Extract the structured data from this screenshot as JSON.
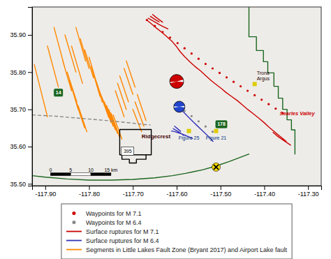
{
  "chart_data": {
    "type": "map",
    "xlim": [
      -117.93,
      -117.27
    ],
    "ylim": [
      35.495,
      35.975
    ],
    "xticks": [
      {
        "value": -117.9,
        "label": "-117.90"
      },
      {
        "value": -117.8,
        "label": "-117.80"
      },
      {
        "value": -117.7,
        "label": "-117.70"
      },
      {
        "value": -117.6,
        "label": "-117.60"
      },
      {
        "value": -117.5,
        "label": "-117.50"
      },
      {
        "value": -117.4,
        "label": "-117.40"
      },
      {
        "value": -117.3,
        "label": "-117.30"
      }
    ],
    "yticks": [
      {
        "value": 35.5,
        "label": "35.50"
      },
      {
        "value": 35.6,
        "label": "35.60"
      },
      {
        "value": 35.7,
        "label": "35.70"
      },
      {
        "value": 35.8,
        "label": "35.80"
      },
      {
        "value": 35.9,
        "label": "35.90"
      }
    ],
    "series": [
      {
        "name": "Waypoints for M 7.1",
        "type": "scatter",
        "color": "#cc0000",
        "marker": "dot",
        "x": [
          -117.668,
          -117.65,
          -117.632,
          -117.615,
          -117.598,
          -117.582,
          -117.566,
          -117.55,
          -117.534,
          -117.518,
          -117.502,
          -117.486,
          -117.47,
          -117.454,
          -117.438,
          -117.422,
          -117.406,
          -117.39,
          -117.374,
          -117.358
        ],
        "values": [
          35.94,
          35.924,
          35.908,
          35.893,
          35.878,
          35.864,
          35.85,
          35.836,
          35.822,
          35.81,
          35.798,
          35.786,
          35.774,
          35.762,
          35.75,
          35.738,
          35.726,
          35.714,
          35.702,
          35.69
        ]
      },
      {
        "name": "Waypoints for M 6.4",
        "type": "scatter",
        "color": "#888888",
        "marker": "dot",
        "x": [
          -117.598,
          -117.582,
          -117.566,
          -117.55,
          -117.534,
          -117.518
        ],
        "values": [
          35.71,
          35.696,
          35.682,
          35.668,
          35.654,
          35.64
        ]
      },
      {
        "name": "Surface ruptures for M 7.1",
        "type": "line",
        "color": "#cc0000",
        "line_style": "solid",
        "x": [
          -117.668,
          -117.658,
          -117.648,
          -117.635,
          -117.622,
          -117.61,
          -117.6,
          -117.592,
          -117.582,
          -117.57,
          -117.558,
          -117.545,
          -117.533,
          -117.522,
          -117.51,
          -117.498,
          -117.488,
          -117.475,
          -117.462,
          -117.45,
          -117.438,
          -117.425,
          -117.412,
          -117.4,
          -117.39,
          -117.38,
          -117.37,
          -117.36,
          -117.35,
          null,
          -117.665,
          -117.658,
          -117.65,
          -117.64,
          -117.63,
          -117.62,
          null,
          -117.66,
          -117.65,
          -117.64,
          null,
          -117.655,
          -117.648,
          -117.64,
          -117.632,
          null,
          -117.38,
          -117.37,
          -117.36,
          -117.35,
          -117.34
        ],
        "values": [
          35.94,
          35.93,
          35.92,
          35.908,
          35.895,
          35.882,
          35.868,
          35.855,
          35.842,
          35.828,
          35.815,
          35.803,
          35.79,
          35.778,
          35.767,
          35.756,
          35.746,
          35.735,
          35.724,
          35.712,
          35.7,
          35.688,
          35.676,
          35.664,
          35.653,
          35.643,
          35.633,
          35.624,
          35.614,
          null,
          35.945,
          35.94,
          35.935,
          35.928,
          35.922,
          35.916,
          null,
          35.95,
          35.942,
          35.935,
          null,
          35.955,
          35.948,
          35.941,
          35.934,
          null,
          35.638,
          35.628,
          35.62,
          35.612,
          35.604
        ]
      },
      {
        "name": "Surface ruptures for M 6.4",
        "type": "line",
        "color": "#3333bb",
        "line_style": "solid",
        "x": [
          -117.598,
          -117.59,
          -117.582,
          -117.572,
          -117.562,
          -117.553,
          -117.545,
          -117.537,
          -117.53,
          -117.523,
          -117.517,
          null,
          -117.612,
          -117.604,
          -117.596,
          -117.588,
          -117.58,
          -117.572,
          -117.564,
          null,
          -117.608,
          -117.6,
          -117.592,
          -117.584,
          null,
          -117.605,
          -117.598,
          -117.591
        ],
        "values": [
          35.71,
          35.7,
          35.69,
          35.678,
          35.666,
          35.656,
          35.647,
          35.638,
          35.63,
          35.622,
          35.614,
          null,
          35.642,
          35.64,
          35.637,
          35.634,
          35.63,
          35.626,
          35.622,
          null,
          35.648,
          35.643,
          35.637,
          35.63,
          null,
          35.655,
          35.648,
          35.641
        ]
      },
      {
        "name": "Segments in Little Lakes Fault Zone (Bryant 2017) and Airport Lake fault",
        "type": "line",
        "color": "#ff8800",
        "line_style": "solid",
        "x": [
          -117.925,
          -117.895,
          null,
          -117.895,
          -117.87,
          null,
          -117.88,
          -117.855,
          null,
          -117.855,
          -117.83,
          null,
          -117.84,
          -117.815,
          null,
          -117.83,
          -117.808,
          null,
          -117.82,
          -117.8,
          null,
          -117.81,
          -117.79,
          null,
          -117.8,
          -117.78,
          null,
          -117.795,
          -117.775,
          null,
          -117.79,
          -117.77,
          null,
          -117.785,
          -117.765,
          null,
          -117.78,
          -117.758,
          null,
          -117.775,
          -117.755,
          null,
          -117.77,
          -117.75,
          null,
          -117.765,
          -117.745,
          null,
          -117.76,
          -117.74,
          null,
          -117.755,
          -117.735,
          null,
          -117.75,
          -117.73,
          null,
          -117.745,
          -117.725,
          null,
          -117.74,
          -117.72,
          null,
          -117.735,
          -117.715,
          null,
          -117.73,
          -117.71,
          null,
          -117.72,
          -117.7,
          null,
          -117.715,
          -117.695,
          null,
          -117.86,
          -117.84,
          null,
          -117.85,
          -117.828,
          null,
          -117.845,
          -117.825,
          null,
          -117.84,
          -117.82,
          null,
          -117.835,
          -117.813,
          null,
          -117.83,
          -117.81,
          null,
          -117.825,
          -117.805,
          null,
          -117.7,
          -117.68,
          null,
          -117.695,
          -117.675,
          null,
          -117.69,
          -117.67
        ],
        "values": [
          35.82,
          35.68,
          null,
          35.87,
          35.76,
          null,
          35.92,
          35.81,
          null,
          35.9,
          35.8,
          null,
          35.87,
          35.77,
          null,
          35.92,
          35.83,
          null,
          35.89,
          35.81,
          null,
          35.86,
          35.785,
          null,
          35.84,
          35.76,
          null,
          35.815,
          35.735,
          null,
          35.8,
          35.72,
          null,
          35.78,
          35.71,
          null,
          35.76,
          35.695,
          null,
          35.745,
          35.678,
          null,
          35.73,
          35.665,
          null,
          35.72,
          35.655,
          null,
          35.71,
          35.645,
          null,
          35.7,
          35.635,
          null,
          35.69,
          35.625,
          null,
          35.685,
          35.62,
          null,
          35.75,
          35.68,
          null,
          35.77,
          35.7,
          null,
          35.79,
          35.72,
          null,
          35.81,
          35.74,
          null,
          35.83,
          35.76,
          null,
          35.83,
          35.75,
          null,
          35.8,
          35.72,
          null,
          35.78,
          35.7,
          null,
          35.76,
          35.685,
          null,
          35.74,
          35.665,
          null,
          35.72,
          35.65,
          null,
          35.71,
          35.64,
          null,
          35.7,
          35.64,
          null,
          35.72,
          35.655,
          null,
          35.74,
          35.67
        ]
      },
      {
        "type": "line",
        "color": "#1a6620",
        "line_style": "solid",
        "x": [
          -117.435,
          -117.435,
          -117.418,
          -117.418,
          -117.402,
          -117.402,
          -117.392,
          -117.392,
          -117.378,
          -117.378,
          -117.368,
          -117.368,
          -117.358,
          -117.358,
          -117.348,
          -117.348,
          -117.338,
          -117.338,
          -117.33,
          -117.33,
          null,
          -117.93,
          -117.9,
          -117.85,
          -117.8,
          -117.75,
          -117.7,
          -117.65,
          -117.61,
          -117.58,
          -117.56,
          -117.54,
          -117.51,
          -117.48,
          -117.435
        ],
        "values": [
          35.975,
          35.895,
          35.895,
          35.858,
          35.858,
          35.828,
          35.828,
          35.798,
          35.798,
          35.762,
          35.762,
          35.73,
          35.73,
          35.7,
          35.7,
          35.672,
          35.672,
          35.645,
          35.645,
          35.58,
          null,
          35.522,
          35.518,
          35.513,
          35.51,
          35.51,
          35.512,
          35.516,
          35.522,
          35.528,
          35.533,
          35.538,
          35.548,
          35.56,
          35.58
        ]
      },
      {
        "type": "line",
        "color": "#888888",
        "line_style": "dashed",
        "x": [
          -117.93,
          -117.88,
          -117.82,
          -117.76,
          -117.7,
          -117.68,
          -117.66
        ],
        "values": [
          35.685,
          35.682,
          35.676,
          35.67,
          35.663,
          35.66,
          35.658
        ]
      },
      {
        "type": "line",
        "color": "black",
        "line_style": "solid",
        "x": [
          -117.73,
          -117.658,
          -117.658,
          -117.73,
          -117.73,
          null,
          -117.725,
          -117.725,
          -117.708,
          -117.708,
          -117.692,
          -117.692,
          -117.67,
          -117.67
        ],
        "values": [
          35.578,
          35.578,
          35.646,
          35.646,
          35.578,
          null,
          35.578,
          35.566,
          35.566,
          35.556,
          35.556,
          35.566,
          35.566,
          35.578
        ]
      }
    ],
    "markers": [
      {
        "x": -117.422,
        "y": 35.768,
        "marker": "square",
        "color": "#ddcc00"
      },
      {
        "x": -117.572,
        "y": 35.642,
        "marker": "square",
        "color": "#ddcc00"
      },
      {
        "x": -117.51,
        "y": 35.642,
        "marker": "square",
        "color": "#ddcc00"
      },
      {
        "x": -117.6,
        "y": 35.775,
        "marker": "beachball",
        "color": "#cc0000"
      },
      {
        "x": -117.594,
        "y": 35.707,
        "marker": "beachball",
        "color": "#2244cc"
      },
      {
        "x": -117.51,
        "y": 35.545,
        "marker": "x",
        "color": "#ffdd00"
      }
    ],
    "annotations": [
      {
        "text": "14",
        "x": -117.87,
        "y": 35.745,
        "marker": "shield",
        "color": "#1a6620"
      },
      {
        "text": "178",
        "x": -117.498,
        "y": 35.66,
        "marker": "shield",
        "color": "#1a6620"
      },
      {
        "text": "395",
        "x": -117.712,
        "y": 35.588,
        "marker": "box",
        "color": "black"
      },
      {
        "text": "Trona\nArgus",
        "x": -117.422,
        "y": 35.768,
        "color": "#220000"
      },
      {
        "text": "Ridgecrest",
        "x": -117.68,
        "y": 35.628,
        "color": "#440000"
      },
      {
        "text": "Searles Valley",
        "x": -117.365,
        "y": 35.69,
        "color": "#cc0000"
      },
      {
        "text": "Figure 25",
        "x": -117.572,
        "y": 35.642,
        "color": "#003388"
      },
      {
        "text": "Figure 21",
        "x": -117.51,
        "y": 35.642,
        "color": "#003388"
      }
    ],
    "scale_bar": {
      "x": [
        -117.888,
        -117.842,
        -117.796,
        -117.75
      ],
      "y": 35.522,
      "labels": [
        "0",
        "5",
        "10",
        "15 km"
      ]
    }
  }
}
